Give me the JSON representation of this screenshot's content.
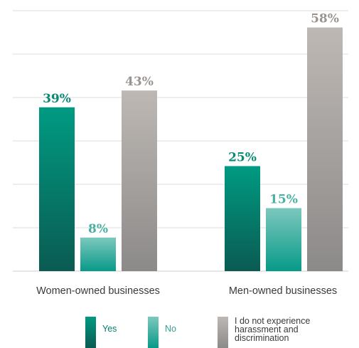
{
  "chart_data": {
    "type": "bar",
    "categories": [
      "Women-owned businesses",
      "Men-owned businesses"
    ],
    "series": [
      {
        "name": "Yes",
        "values": [
          39,
          25
        ],
        "labels": [
          "39%",
          "25%"
        ],
        "color": "#0b8a73",
        "label_color": "#0b8a73"
      },
      {
        "name": "No",
        "values": [
          8,
          15
        ],
        "labels": [
          "8%",
          "15%"
        ],
        "color": "#6cc2b7",
        "label_color": "#49b0a3"
      },
      {
        "name": "I do not experience harassment and discrimination",
        "values": [
          43,
          58
        ],
        "labels": [
          "43%",
          "58%"
        ],
        "color": "#b0aba8",
        "label_color": "#9a9490"
      }
    ],
    "ylim": [
      0,
      62
    ],
    "grid": true,
    "legend_position": "bottom"
  },
  "legend": {
    "yes": "Yes",
    "no": "No",
    "none_line1": "I do not experience",
    "none_line2": "harassment and",
    "none_line3": "discrimination"
  }
}
